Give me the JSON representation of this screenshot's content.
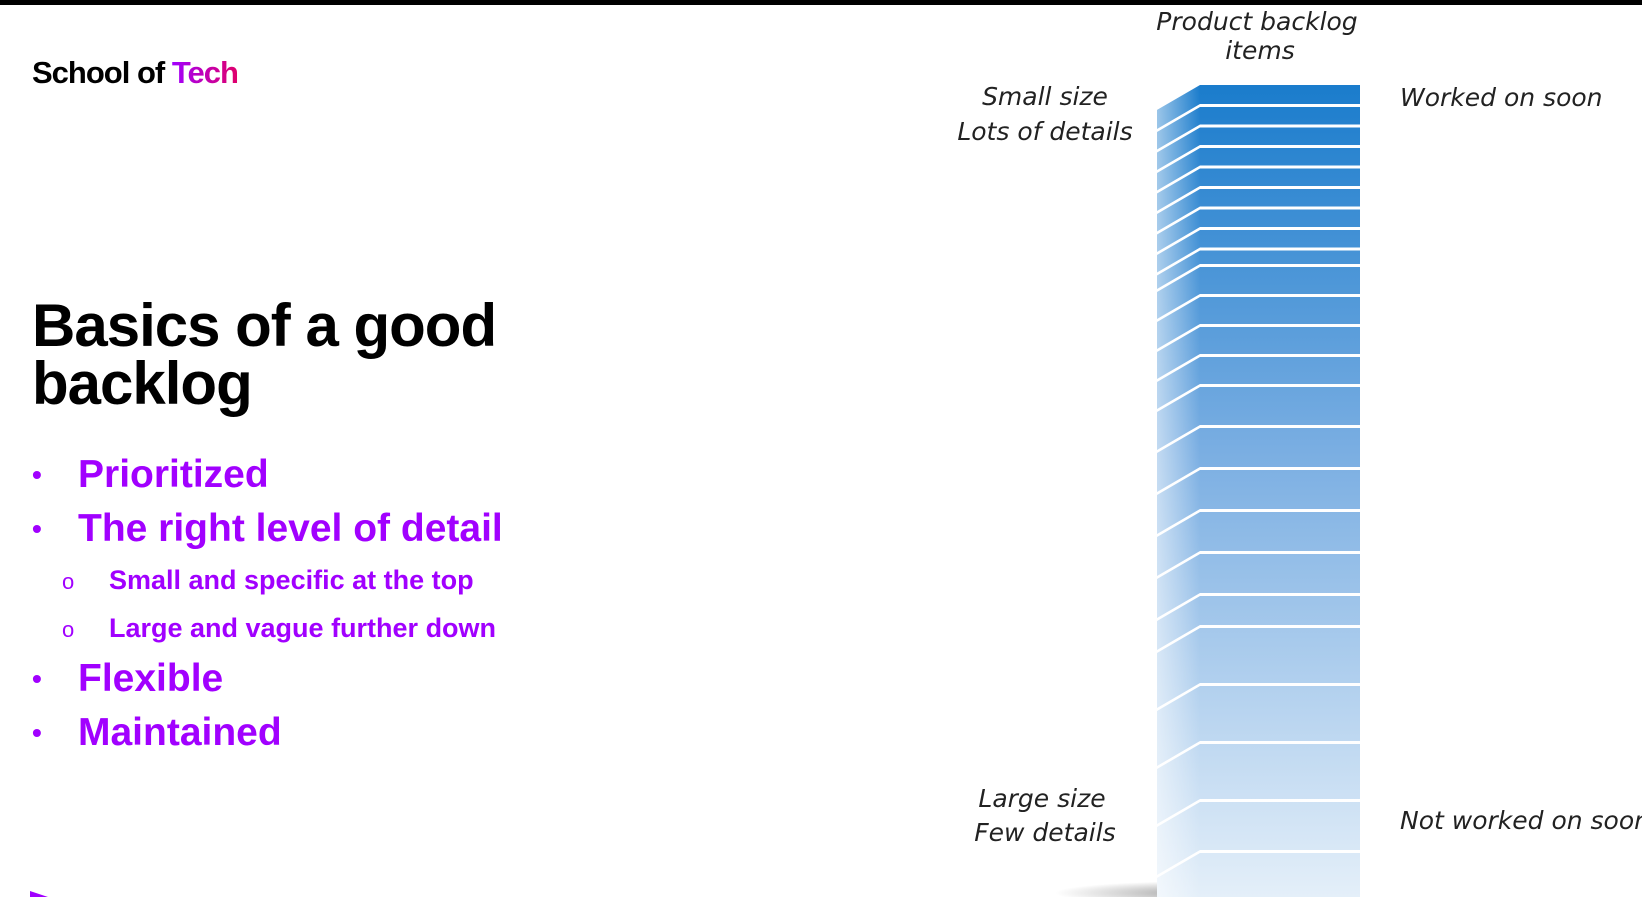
{
  "logo": {
    "part1": "School of",
    "part2": "Tech"
  },
  "slide": {
    "title": "Basics of a good backlog",
    "bullets": [
      {
        "text": "Prioritized"
      },
      {
        "text": "The right level of detail"
      },
      {
        "text": "Small and specific at the top"
      },
      {
        "text": "Large and vague further down"
      },
      {
        "text": "Flexible"
      },
      {
        "text": "Maintained"
      }
    ],
    "bullet_symbol": "•",
    "sub_bullet_symbol": "o"
  },
  "diagram": {
    "heading_line1": "Product backlog",
    "heading_line2": "items",
    "top_left_line1": "Small size",
    "top_left_line2": "Lots of details",
    "top_right": "Worked on soon",
    "bottom_left_line1": "Large size",
    "bottom_left_line2": "Few details",
    "bottom_right": "Not worked on soon"
  },
  "colors": {
    "accent_purple": "#a100ff",
    "accent_pink": "#e0006a",
    "stack_dark_blue": "#1a7ccc",
    "stack_light_blue": "#d7e8f8"
  }
}
